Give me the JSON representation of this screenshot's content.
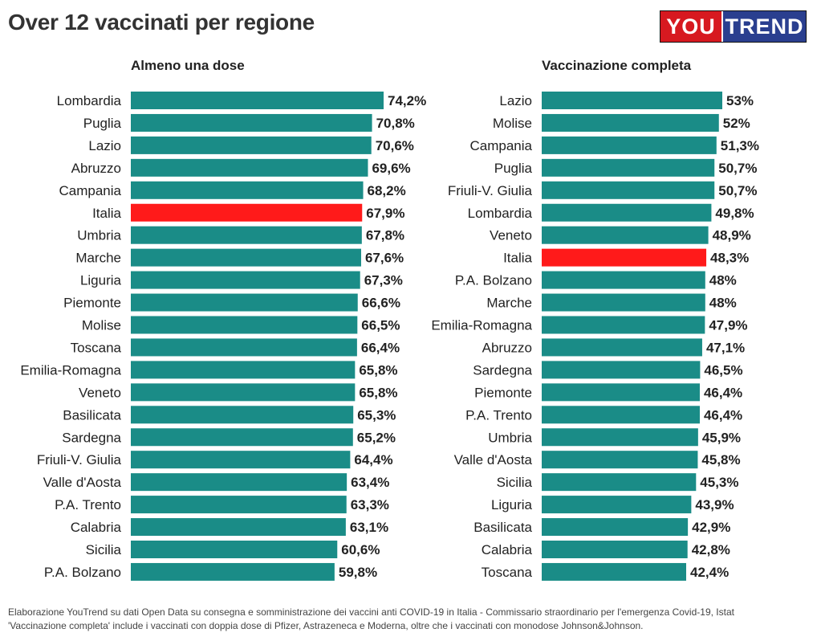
{
  "title": "Over 12 vaccinati per regione",
  "logo": {
    "part1": "YOU",
    "part2": "TREND"
  },
  "colors": {
    "bar": "#1a8c87",
    "highlight": "#ff1a1a",
    "highlight_category": "Italia"
  },
  "chart_data": [
    {
      "type": "bar",
      "orientation": "horizontal",
      "title": "Almeno una dose",
      "categories": [
        "Lombardia",
        "Puglia",
        "Lazio",
        "Abruzzo",
        "Campania",
        "Italia",
        "Umbria",
        "Marche",
        "Liguria",
        "Piemonte",
        "Molise",
        "Toscana",
        "Emilia-Romagna",
        "Veneto",
        "Basilicata",
        "Sardegna",
        "Friuli-V. Giulia",
        "Valle d'Aosta",
        "P.A. Trento",
        "Calabria",
        "Sicilia",
        "P.A. Bolzano"
      ],
      "values": [
        74.2,
        70.8,
        70.6,
        69.6,
        68.2,
        67.9,
        67.8,
        67.6,
        67.3,
        66.6,
        66.5,
        66.4,
        65.8,
        65.8,
        65.3,
        65.2,
        64.4,
        63.4,
        63.3,
        63.1,
        60.6,
        59.8
      ],
      "labels": [
        "74,2%",
        "70,8%",
        "70,6%",
        "69,6%",
        "68,2%",
        "67,9%",
        "67,8%",
        "67,6%",
        "67,3%",
        "66,6%",
        "66,5%",
        "66,4%",
        "65,8%",
        "65,8%",
        "65,3%",
        "65,2%",
        "64,4%",
        "63,4%",
        "63,3%",
        "63,1%",
        "60,6%",
        "59,8%"
      ],
      "xlim": [
        0,
        74.2
      ]
    },
    {
      "type": "bar",
      "orientation": "horizontal",
      "title": "Vaccinazione completa",
      "categories": [
        "Lazio",
        "Molise",
        "Campania",
        "Puglia",
        "Friuli-V. Giulia",
        "Lombardia",
        "Veneto",
        "Italia",
        "P.A. Bolzano",
        "Marche",
        "Emilia-Romagna",
        "Abruzzo",
        "Sardegna",
        "Piemonte",
        "P.A. Trento",
        "Umbria",
        "Valle d'Aosta",
        "Sicilia",
        "Liguria",
        "Basilicata",
        "Calabria",
        "Toscana"
      ],
      "values": [
        53,
        52,
        51.3,
        50.7,
        50.7,
        49.8,
        48.9,
        48.3,
        48,
        48,
        47.9,
        47.1,
        46.5,
        46.4,
        46.4,
        45.9,
        45.8,
        45.3,
        43.9,
        42.9,
        42.8,
        42.4
      ],
      "labels": [
        "53%",
        "52%",
        "51,3%",
        "50,7%",
        "50,7%",
        "49,8%",
        "48,9%",
        "48,3%",
        "48%",
        "48%",
        "47,9%",
        "47,1%",
        "46,5%",
        "46,4%",
        "46,4%",
        "45,9%",
        "45,8%",
        "45,3%",
        "43,9%",
        "42,9%",
        "42,8%",
        "42,4%"
      ],
      "xlim": [
        0,
        53
      ]
    }
  ],
  "notes": {
    "line1": "Elaborazione YouTrend su dati Open Data su consegna e somministrazione dei vaccini anti COVID-19 in Italia - Commissario straordinario per l'emergenza Covid-19, Istat",
    "line2": "'Vaccinazione completa' include i vaccinati con doppia dose di Pfizer, Astrazeneca e Moderna, oltre che i vaccinati con monodose Johnson&Johnson."
  }
}
